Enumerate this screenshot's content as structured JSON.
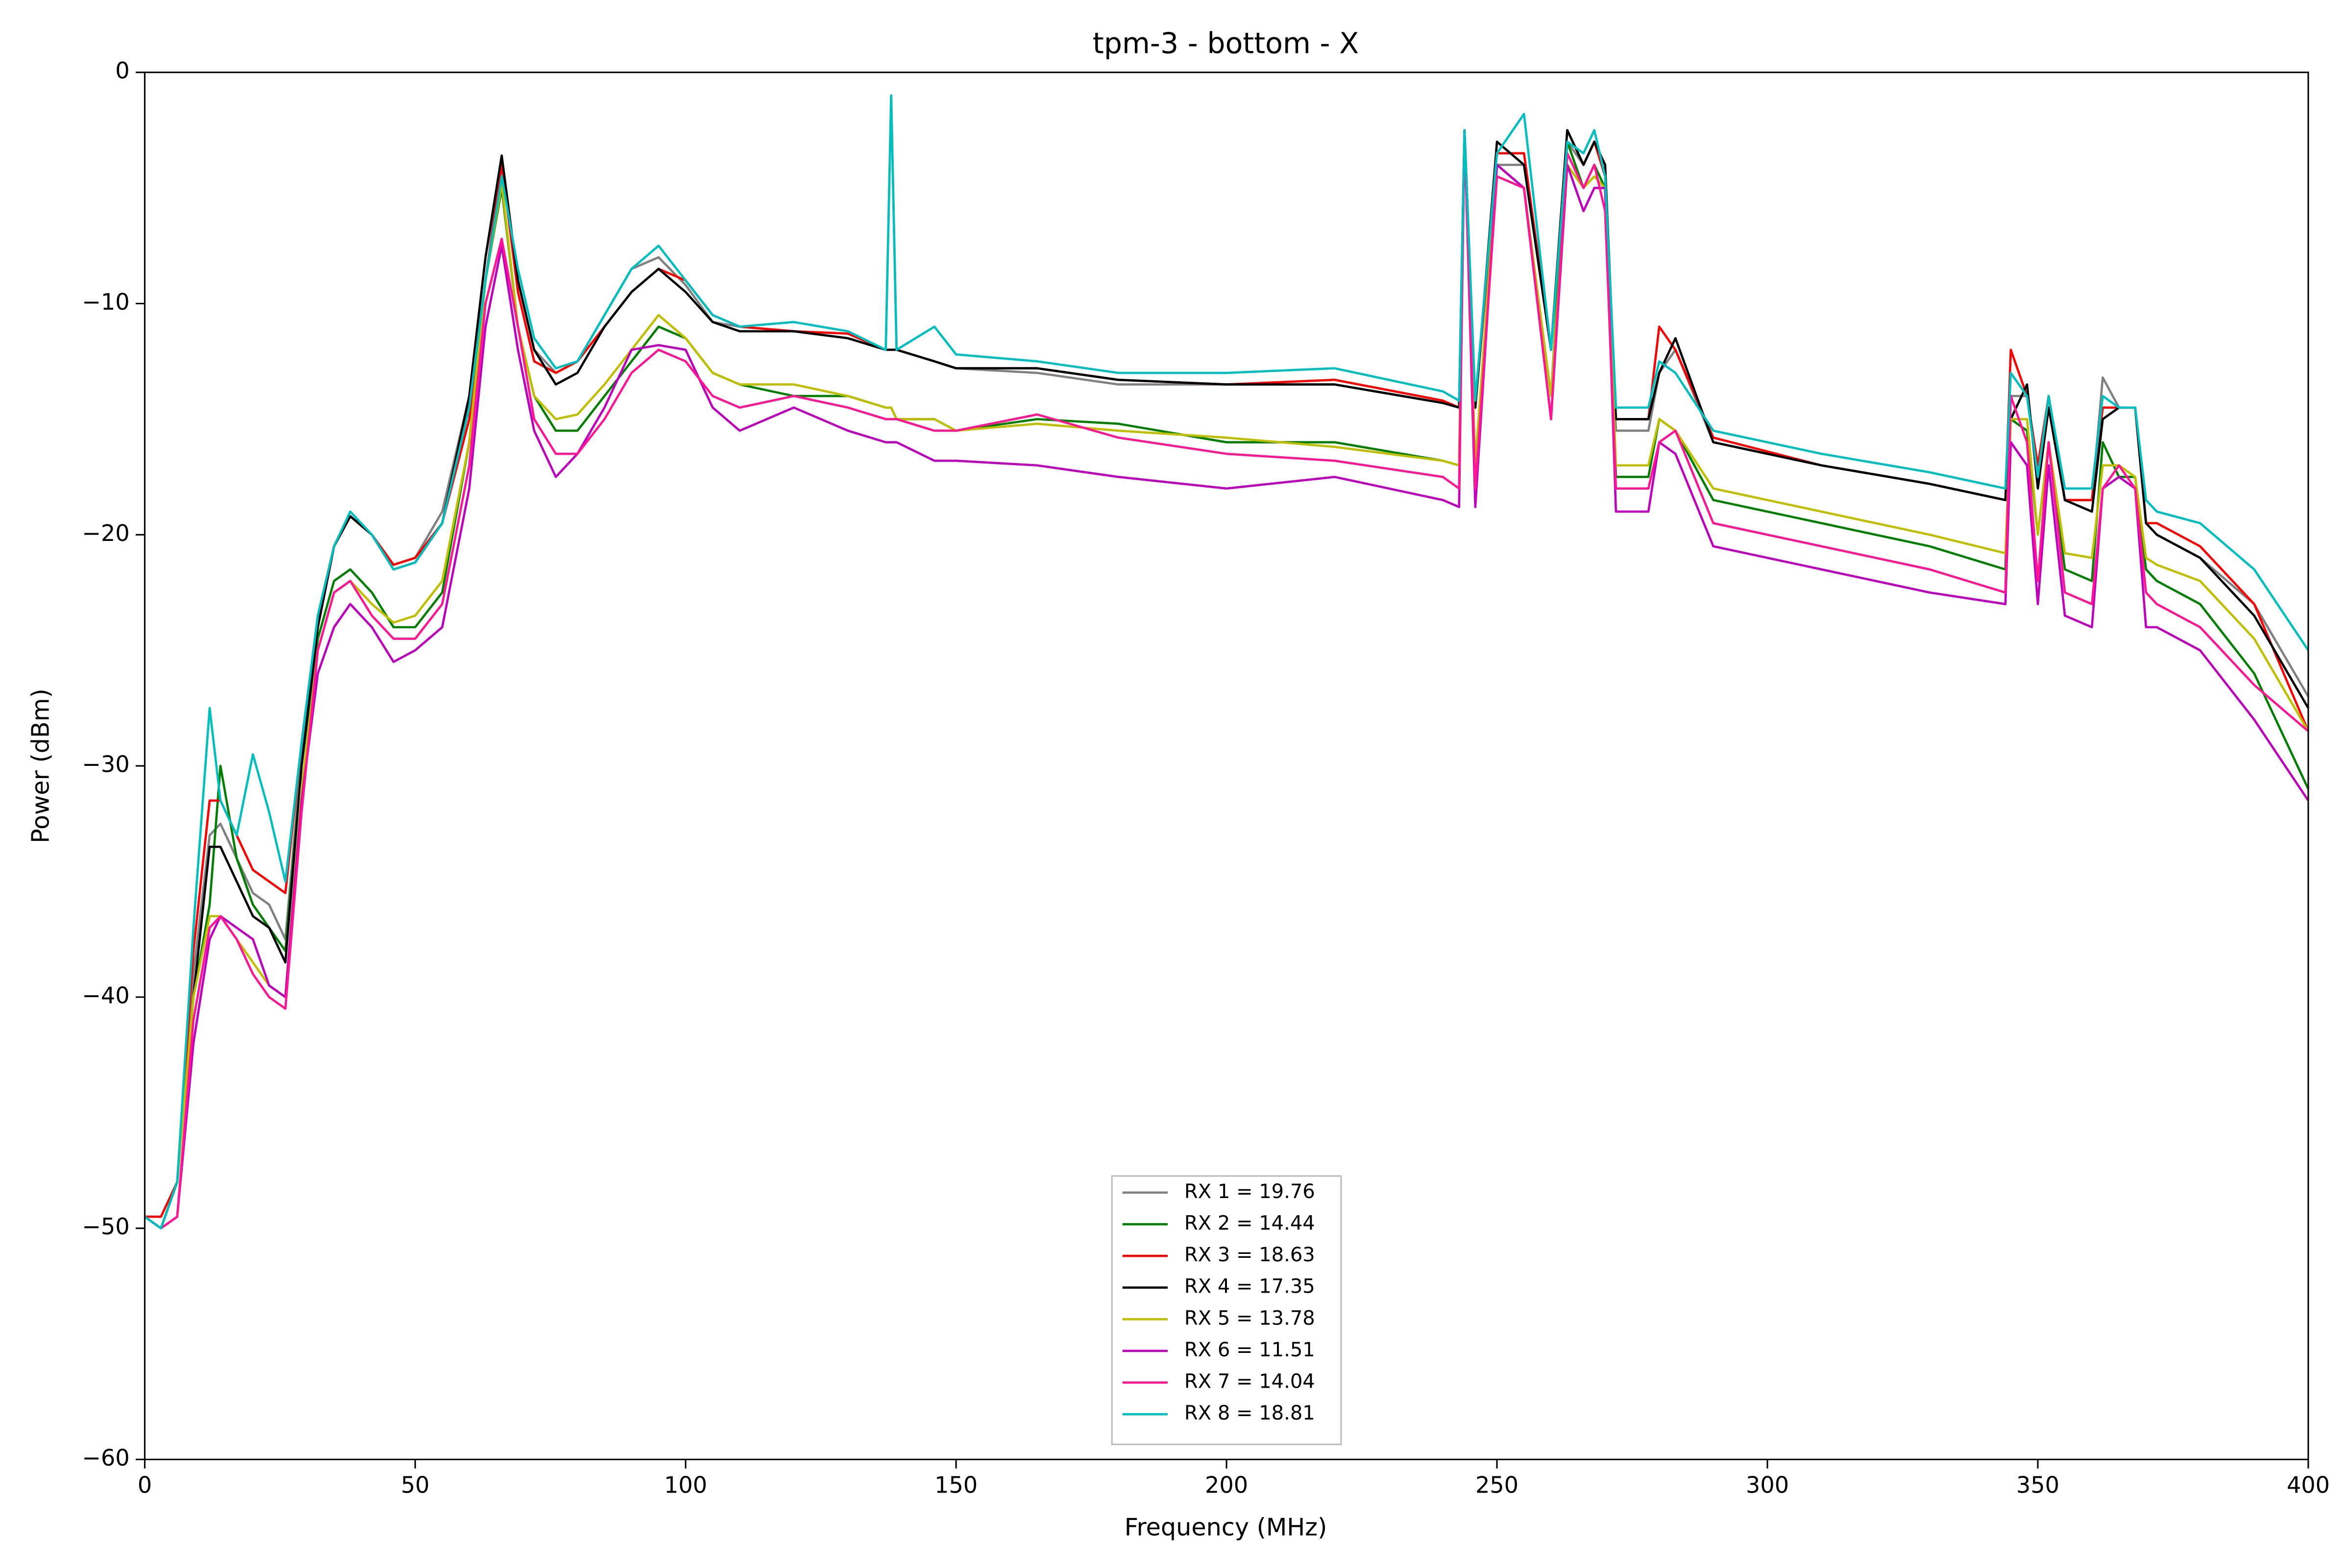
{
  "chart_data": {
    "type": "line",
    "title": "tpm-3 - bottom - X",
    "x_label": "Frequency (MHz)",
    "y_label": "Power (dBm)",
    "xlim": [
      0,
      400
    ],
    "ylim": [
      -60,
      0
    ],
    "xticks": [
      0,
      50,
      100,
      150,
      200,
      250,
      300,
      350,
      400
    ],
    "yticks": [
      0,
      {
        "value": -10,
        "label": "−10"
      },
      {
        "value": -20,
        "label": "−20"
      },
      {
        "value": -30,
        "label": "−30"
      },
      {
        "value": -40,
        "label": "−40"
      },
      {
        "value": -50,
        "label": "−50"
      },
      {
        "value": -60,
        "label": "−60"
      }
    ],
    "grid": false,
    "legend": "lower center",
    "x": [
      0,
      3,
      6,
      9,
      12,
      14,
      17,
      20,
      23,
      26,
      29,
      32,
      35,
      38,
      42,
      46,
      50,
      55,
      60,
      63,
      66,
      69,
      72,
      76,
      80,
      85,
      90,
      95,
      100,
      105,
      110,
      120,
      130,
      137,
      138,
      139,
      146,
      150,
      165,
      180,
      200,
      220,
      240,
      243,
      244,
      246,
      250,
      255,
      260,
      263,
      266,
      268,
      270,
      272,
      278,
      280,
      283,
      290,
      310,
      330,
      344,
      345,
      348,
      350,
      352,
      355,
      360,
      362,
      365,
      368,
      370,
      372,
      380,
      390,
      400
    ],
    "series": [
      {
        "name": "RX 1 = 19.76",
        "color": "#808080",
        "values": [
          -49.5,
          -50,
          -48,
          -39,
          -33,
          -32.5,
          -34,
          -35.5,
          -36,
          -37.5,
          -29.5,
          -24,
          -20.5,
          -19.2,
          -20,
          -21.3,
          -21,
          -19,
          -14,
          -8,
          -4,
          -9,
          -12,
          -13,
          -12.5,
          -10.5,
          -8.5,
          -8,
          -9.2,
          -10.8,
          -11,
          -11.2,
          -11.5,
          -12,
          -1,
          -12,
          -12.5,
          -12.8,
          -13,
          -13.5,
          -13.5,
          -13.5,
          -14.3,
          -14.5,
          -2.5,
          -14.5,
          -4,
          -4,
          -12,
          -3,
          -4,
          -3,
          -4,
          -15.5,
          -15.5,
          -13,
          -12,
          -16,
          -17,
          -17.8,
          -18.5,
          -14,
          -14,
          -17.5,
          -14,
          -18.5,
          -18.5,
          -13.2,
          -14.5,
          -14.5,
          -19.5,
          -20,
          -21,
          -23,
          -27
        ]
      },
      {
        "name": "RX 2 = 14.44",
        "color": "#007f00",
        "values": [
          -49.5,
          -50,
          -48,
          -40,
          -36,
          -30,
          -34,
          -36,
          -37,
          -38,
          -30,
          -24.5,
          -22,
          -21.5,
          -22.5,
          -24,
          -24,
          -22.5,
          -16,
          -9,
          -5,
          -11,
          -14,
          -15.5,
          -15.5,
          -14,
          -12.5,
          -11,
          -11.5,
          -13,
          -13.5,
          -14,
          -14,
          -14.5,
          -14.5,
          -15,
          -15,
          -15.5,
          -15,
          -15.2,
          -16,
          -16,
          -16.8,
          -17,
          -2.5,
          -17,
          -4,
          -5,
          -14,
          -3,
          -5,
          -4,
          -5,
          -17.5,
          -17.5,
          -15,
          -15.5,
          -18.5,
          -19.5,
          -20.5,
          -21.5,
          -15,
          -15.5,
          -20,
          -16,
          -21.5,
          -22,
          -16,
          -17.5,
          -17.5,
          -21.5,
          -22,
          -23,
          -26,
          -31
        ]
      },
      {
        "name": "RX 3 = 18.63",
        "color": "#ff0000",
        "values": [
          -49.5,
          -49.5,
          -48,
          -38,
          -31.5,
          -31.5,
          -33,
          -34.5,
          -35,
          -35.5,
          -29,
          -23.5,
          -20.5,
          -19.2,
          -20,
          -21.3,
          -21,
          -19.5,
          -15,
          -9,
          -4,
          -9.5,
          -12.5,
          -13,
          -12.5,
          -11,
          -9.5,
          -8.5,
          -9,
          -10.5,
          -11,
          -11.2,
          -11.3,
          -12,
          -12,
          -12,
          -12.5,
          -12.8,
          -12.8,
          -13.3,
          -13.5,
          -13.3,
          -14.2,
          -14.5,
          -2.5,
          -14.5,
          -3.5,
          -3.5,
          -12,
          -2.5,
          -4,
          -3,
          -4.5,
          -15,
          -15,
          -11,
          -12,
          -15.8,
          -17,
          -17.8,
          -18.5,
          -12,
          -14,
          -17,
          -14,
          -18.5,
          -18.5,
          -14.5,
          -14.5,
          -14.5,
          -19.5,
          -19.5,
          -20.5,
          -23,
          -28.5
        ]
      },
      {
        "name": "RX 4 = 17.35",
        "color": "#000000",
        "values": [
          -49.5,
          -50,
          -48,
          -40,
          -33.5,
          -33.5,
          -35,
          -36.5,
          -37,
          -38.5,
          -30,
          -24,
          -20.5,
          -19.2,
          -20,
          -21.5,
          -21.2,
          -19.5,
          -14,
          -8,
          -3.6,
          -9,
          -12,
          -13.5,
          -13,
          -11,
          -9.5,
          -8.5,
          -9.5,
          -10.8,
          -11.2,
          -11.2,
          -11.5,
          -12,
          -12,
          -12,
          -12.5,
          -12.8,
          -12.8,
          -13.3,
          -13.5,
          -13.5,
          -14.3,
          -14.5,
          -2.5,
          -14.5,
          -3,
          -4,
          -12,
          -2.5,
          -4,
          -3,
          -4,
          -15,
          -15,
          -13,
          -11.5,
          -16,
          -17,
          -17.8,
          -18.5,
          -15,
          -13.5,
          -18,
          -14.5,
          -18.5,
          -19,
          -15,
          -14.5,
          -14.5,
          -19.5,
          -20,
          -21,
          -23.5,
          -27.5
        ]
      },
      {
        "name": "RX 5 = 13.78",
        "color": "#bfbf00",
        "values": [
          -49.5,
          -50,
          -48,
          -40,
          -36.5,
          -36.5,
          -37.5,
          -38.5,
          -39.5,
          -40,
          -31,
          -25,
          -22.5,
          -22,
          -23,
          -23.8,
          -23.5,
          -22,
          -16,
          -9,
          -4.8,
          -11,
          -14,
          -15,
          -14.8,
          -13.5,
          -12,
          -10.5,
          -11.5,
          -13,
          -13.5,
          -13.5,
          -14,
          -14.5,
          -14.5,
          -15,
          -15,
          -15.5,
          -15.2,
          -15.5,
          -15.8,
          -16.2,
          -16.8,
          -17,
          -2.5,
          -17,
          -4,
          -5,
          -14,
          -4,
          -5,
          -4.5,
          -5,
          -17,
          -17,
          -15,
          -15.5,
          -18,
          -19,
          -20,
          -20.8,
          -15,
          -15,
          -20,
          -16,
          -20.8,
          -21,
          -17,
          -17,
          -17.5,
          -21,
          -21.3,
          -22,
          -24.5,
          -28.5
        ]
      },
      {
        "name": "RX 6 = 11.51",
        "color": "#bf00bf",
        "values": [
          -49.5,
          -50,
          -49.5,
          -42,
          -37.5,
          -36.5,
          -37,
          -37.5,
          -39.5,
          -40,
          -31.5,
          -26,
          -24,
          -23,
          -24,
          -25.5,
          -25,
          -24,
          -18,
          -11,
          -7.5,
          -12,
          -15.5,
          -17.5,
          -16.5,
          -14.5,
          -12,
          -11.8,
          -12,
          -14.5,
          -15.5,
          -14.5,
          -15.5,
          -16,
          -16,
          -16,
          -16.8,
          -16.8,
          -17,
          -17.5,
          -18,
          -17.5,
          -18.5,
          -18.8,
          -2.5,
          -18.8,
          -4,
          -5,
          -15,
          -4,
          -6,
          -5,
          -5,
          -19,
          -19,
          -16,
          -16.5,
          -20.5,
          -21.5,
          -22.5,
          -23,
          -16,
          -17,
          -23,
          -17,
          -23.5,
          -24,
          -18,
          -17.5,
          -18,
          -24,
          -24,
          -25,
          -28,
          -31.5
        ]
      },
      {
        "name": "RX 7 = 14.04",
        "color": "#ff1493",
        "values": [
          -49.5,
          -50,
          -49.5,
          -41,
          -37,
          -36.5,
          -37.5,
          -39,
          -40,
          -40.5,
          -32,
          -25,
          -22.5,
          -22,
          -23.5,
          -24.5,
          -24.5,
          -23,
          -17,
          -10,
          -7.2,
          -11,
          -15,
          -16.5,
          -16.5,
          -15,
          -13,
          -12,
          -12.5,
          -14,
          -14.5,
          -14,
          -14.5,
          -15,
          -15,
          -15,
          -15.5,
          -15.5,
          -14.8,
          -15.8,
          -16.5,
          -16.8,
          -17.5,
          -18,
          -2.5,
          -18,
          -4.5,
          -5,
          -15,
          -3.5,
          -5,
          -4,
          -6,
          -18,
          -18,
          -16,
          -15.5,
          -19.5,
          -20.5,
          -21.5,
          -22.5,
          -14,
          -16,
          -22,
          -16,
          -22.5,
          -23,
          -18,
          -17,
          -18,
          -22.5,
          -23,
          -24,
          -26.5,
          -28.5
        ]
      },
      {
        "name": "RX 8 = 18.81",
        "color": "#00bfbf",
        "values": [
          -49.5,
          -50,
          -48,
          -37,
          -27.5,
          -31.5,
          -33,
          -29.5,
          -32,
          -35,
          -29,
          -23.5,
          -20.5,
          -19,
          -20,
          -21.5,
          -21.2,
          -19.5,
          -14.5,
          -9,
          -4.5,
          -8.5,
          -11.5,
          -12.8,
          -12.5,
          -10.5,
          -8.5,
          -7.5,
          -9,
          -10.5,
          -11,
          -10.8,
          -11.2,
          -12,
          -1,
          -12,
          -11,
          -12.2,
          -12.5,
          -13,
          -13,
          -12.8,
          -13.8,
          -14.2,
          -2.5,
          -14.2,
          -3.5,
          -1.8,
          -12,
          -3,
          -3.5,
          -2.5,
          -4.5,
          -14.5,
          -14.5,
          -12.5,
          -13,
          -15.5,
          -16.5,
          -17.3,
          -18,
          -13,
          -14,
          -17.5,
          -14,
          -18,
          -18,
          -14,
          -14.5,
          -14.5,
          -18.5,
          -19,
          -19.5,
          -21.5,
          -25
        ]
      }
    ]
  }
}
